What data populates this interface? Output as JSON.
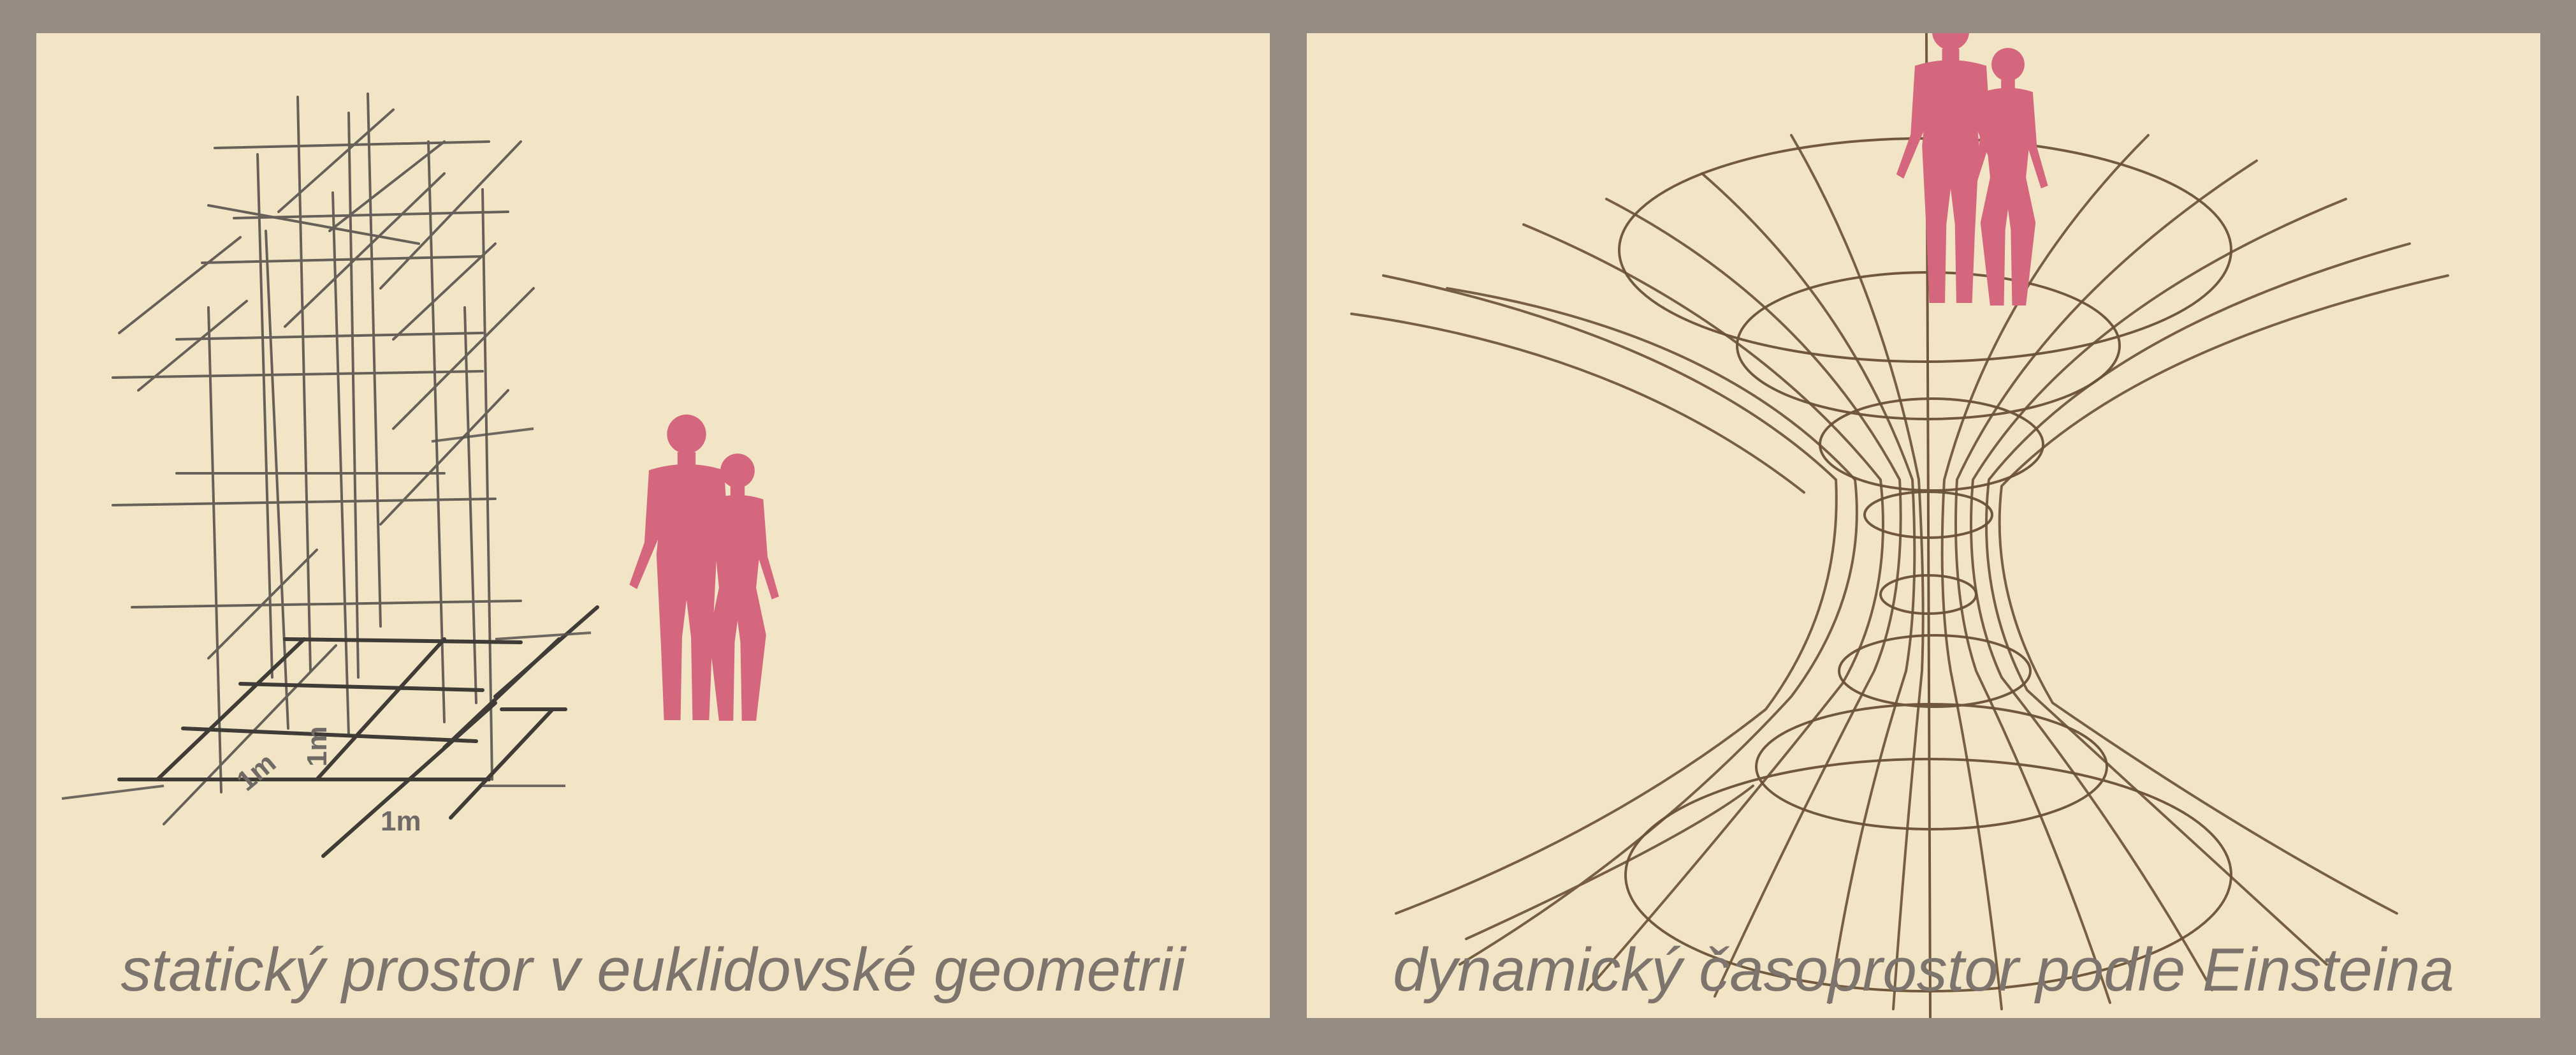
{
  "colors": {
    "frame": "#978c83",
    "paper": "#f1e5c6",
    "grid_pencil": "#57524d",
    "spacetime_ink": "#6b5136",
    "human_figures": "#d4667d",
    "caption_text": "#7d746e"
  },
  "left_panel": {
    "caption": "statický prostor v euklidovské geometrii",
    "dimension_labels": {
      "height": "1m",
      "depth": "1m",
      "width": "1m"
    },
    "icons": [
      "man-silhouette-icon",
      "woman-silhouette-icon"
    ]
  },
  "right_panel": {
    "caption": "dynamický časoprostor podle Einsteina",
    "icons": [
      "man-silhouette-icon",
      "woman-silhouette-icon"
    ]
  }
}
